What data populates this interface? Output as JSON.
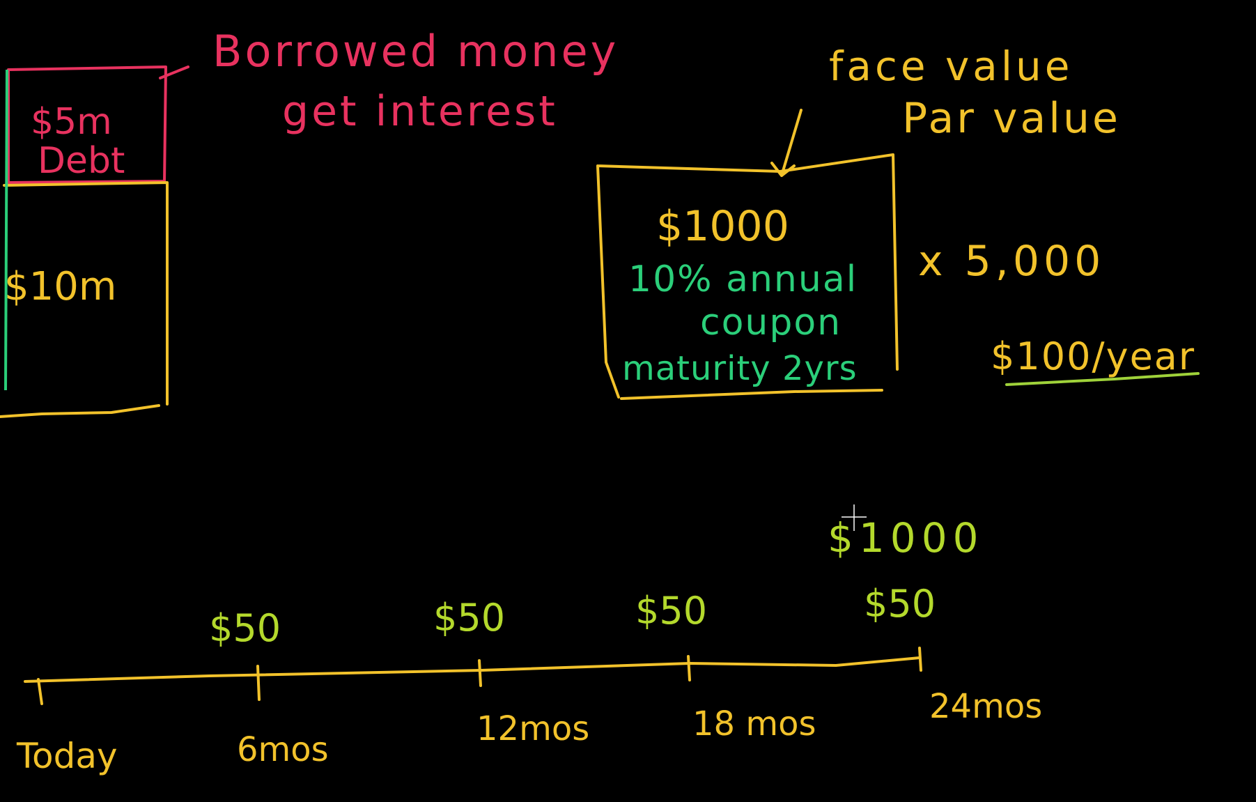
{
  "balance_sheet": {
    "debt_amount": "$5m",
    "debt_label": "Debt",
    "total": "$10m",
    "note_line1": "Borrowed money",
    "note_line2": "get interest"
  },
  "bond": {
    "face_label": "face value",
    "par_label": "Par value",
    "price": "$1000",
    "coupon_line1": "10% annual",
    "coupon_line2": "coupon",
    "maturity": "maturity 2yrs",
    "multiplier": "x 5,000",
    "per_year": "$100/year"
  },
  "timeline": {
    "principal": "$1000",
    "payments": [
      "$50",
      "$50",
      "$50",
      "$50"
    ],
    "labels": [
      "Today",
      "6mos",
      "12mos",
      "18 mos",
      "24mos"
    ]
  },
  "colors": {
    "background": "#000000",
    "pink": "#e8325f",
    "yellow": "#f2c22b",
    "green": "#2bcf7a",
    "lime": "#b4d92c"
  }
}
